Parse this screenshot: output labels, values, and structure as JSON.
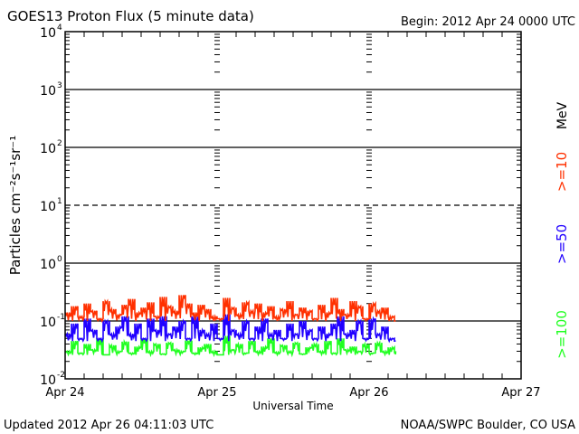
{
  "chart_data": {
    "type": "line",
    "title": "GOES13 Proton Flux (5 minute data)",
    "subtitle": "Begin: 2012 Apr 24 0000 UTC",
    "xlabel": "Universal Time",
    "ylabel": "Particles cm⁻²s⁻¹sr⁻¹",
    "x_ticks": [
      "Apr 24",
      "Apr 25",
      "Apr 26",
      "Apr 27"
    ],
    "x_range_hours": [
      0,
      72
    ],
    "y_scale": "log",
    "ylim": [
      0.01,
      10000
    ],
    "y_ticks": [
      {
        "base": "10",
        "exp": "4",
        "value": 10000
      },
      {
        "base": "10",
        "exp": "3",
        "value": 1000
      },
      {
        "base": "10",
        "exp": "2",
        "value": 100
      },
      {
        "base": "10",
        "exp": "1",
        "value": 10
      },
      {
        "base": "10",
        "exp": "0",
        "value": 1
      },
      {
        "base": "10",
        "exp": "-1",
        "value": 0.1
      },
      {
        "base": "10",
        "exp": "-2",
        "value": 0.01
      }
    ],
    "dashed_threshold": 10,
    "legend_unit": "MeV",
    "x_hours": [
      0,
      1,
      2,
      3,
      4,
      5,
      6,
      7,
      8,
      9,
      10,
      11,
      12,
      13,
      14,
      15,
      16,
      17,
      18,
      19,
      20,
      21,
      22,
      23,
      24,
      25,
      26,
      27,
      28,
      29,
      30,
      31,
      32,
      33,
      34,
      35,
      36,
      37,
      38,
      39,
      40,
      41,
      42,
      43,
      44,
      45,
      46,
      47,
      48,
      49,
      50,
      51,
      52
    ],
    "series": [
      {
        "name": ">=10",
        "color": "#ff3000",
        "values": [
          0.14,
          0.18,
          0.12,
          0.2,
          0.15,
          0.11,
          0.22,
          0.16,
          0.13,
          0.19,
          0.24,
          0.14,
          0.17,
          0.21,
          0.12,
          0.26,
          0.18,
          0.15,
          0.28,
          0.2,
          0.14,
          0.19,
          0.16,
          0.12,
          0.11,
          0.25,
          0.17,
          0.13,
          0.21,
          0.15,
          0.2,
          0.14,
          0.18,
          0.12,
          0.16,
          0.22,
          0.13,
          0.17,
          0.15,
          0.11,
          0.19,
          0.14,
          0.25,
          0.16,
          0.13,
          0.22,
          0.18,
          0.11,
          0.2,
          0.15,
          0.17,
          0.12,
          0.1
        ]
      },
      {
        "name": ">=50",
        "color": "#2000ff",
        "values": [
          0.06,
          0.09,
          0.05,
          0.11,
          0.07,
          0.05,
          0.1,
          0.06,
          0.08,
          0.12,
          0.06,
          0.09,
          0.05,
          0.11,
          0.07,
          0.12,
          0.06,
          0.08,
          0.1,
          0.05,
          0.12,
          0.07,
          0.06,
          0.09,
          0.05,
          0.13,
          0.07,
          0.06,
          0.1,
          0.05,
          0.08,
          0.11,
          0.06,
          0.07,
          0.05,
          0.09,
          0.06,
          0.1,
          0.07,
          0.05,
          0.08,
          0.06,
          0.09,
          0.12,
          0.06,
          0.07,
          0.1,
          0.05,
          0.11,
          0.06,
          0.08,
          0.05,
          0.045
        ]
      },
      {
        "name": ">=100",
        "color": "#20ff20",
        "values": [
          0.03,
          0.045,
          0.028,
          0.04,
          0.032,
          0.05,
          0.026,
          0.038,
          0.03,
          0.044,
          0.028,
          0.036,
          0.05,
          0.03,
          0.04,
          0.027,
          0.042,
          0.032,
          0.03,
          0.046,
          0.028,
          0.035,
          0.04,
          0.03,
          0.026,
          0.055,
          0.032,
          0.04,
          0.028,
          0.045,
          0.03,
          0.036,
          0.05,
          0.029,
          0.038,
          0.03,
          0.042,
          0.027,
          0.035,
          0.04,
          0.03,
          0.045,
          0.028,
          0.05,
          0.032,
          0.036,
          0.03,
          0.04,
          0.028,
          0.042,
          0.03,
          0.035,
          0.03
        ]
      }
    ]
  },
  "footer": {
    "updated": "Updated 2012 Apr 26 04:11:03 UTC",
    "source": "NOAA/SWPC Boulder, CO USA"
  }
}
